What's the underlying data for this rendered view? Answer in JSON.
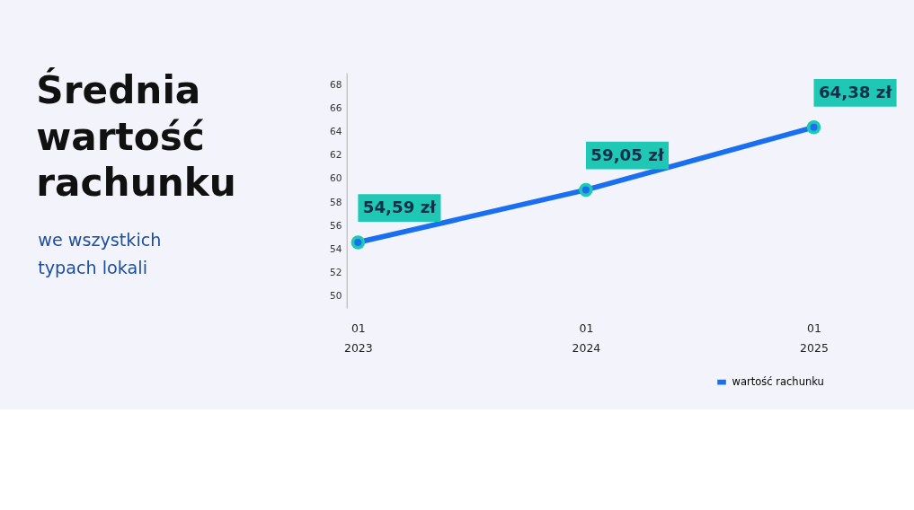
{
  "chart_data": {
    "type": "line",
    "title": "Średnia wartość rachunku",
    "subtitle": "we wszystkich typach lokali",
    "categories": [
      "01\n2023",
      "01\n2024",
      "01\n2025"
    ],
    "series": [
      {
        "name": "wartość rachunku",
        "color": "#1a6ff0",
        "values": [
          54.59,
          59.05,
          64.38
        ]
      }
    ],
    "value_labels": [
      "54,59 zł",
      "59,05 zł",
      "64,38 zł"
    ],
    "ylim": [
      49,
      69
    ],
    "yticks": [
      50,
      52,
      54,
      56,
      58,
      60,
      62,
      64,
      66,
      68
    ],
    "grid": false,
    "legend": "bottom right",
    "marker": "circle",
    "line_style": "solid"
  }
}
